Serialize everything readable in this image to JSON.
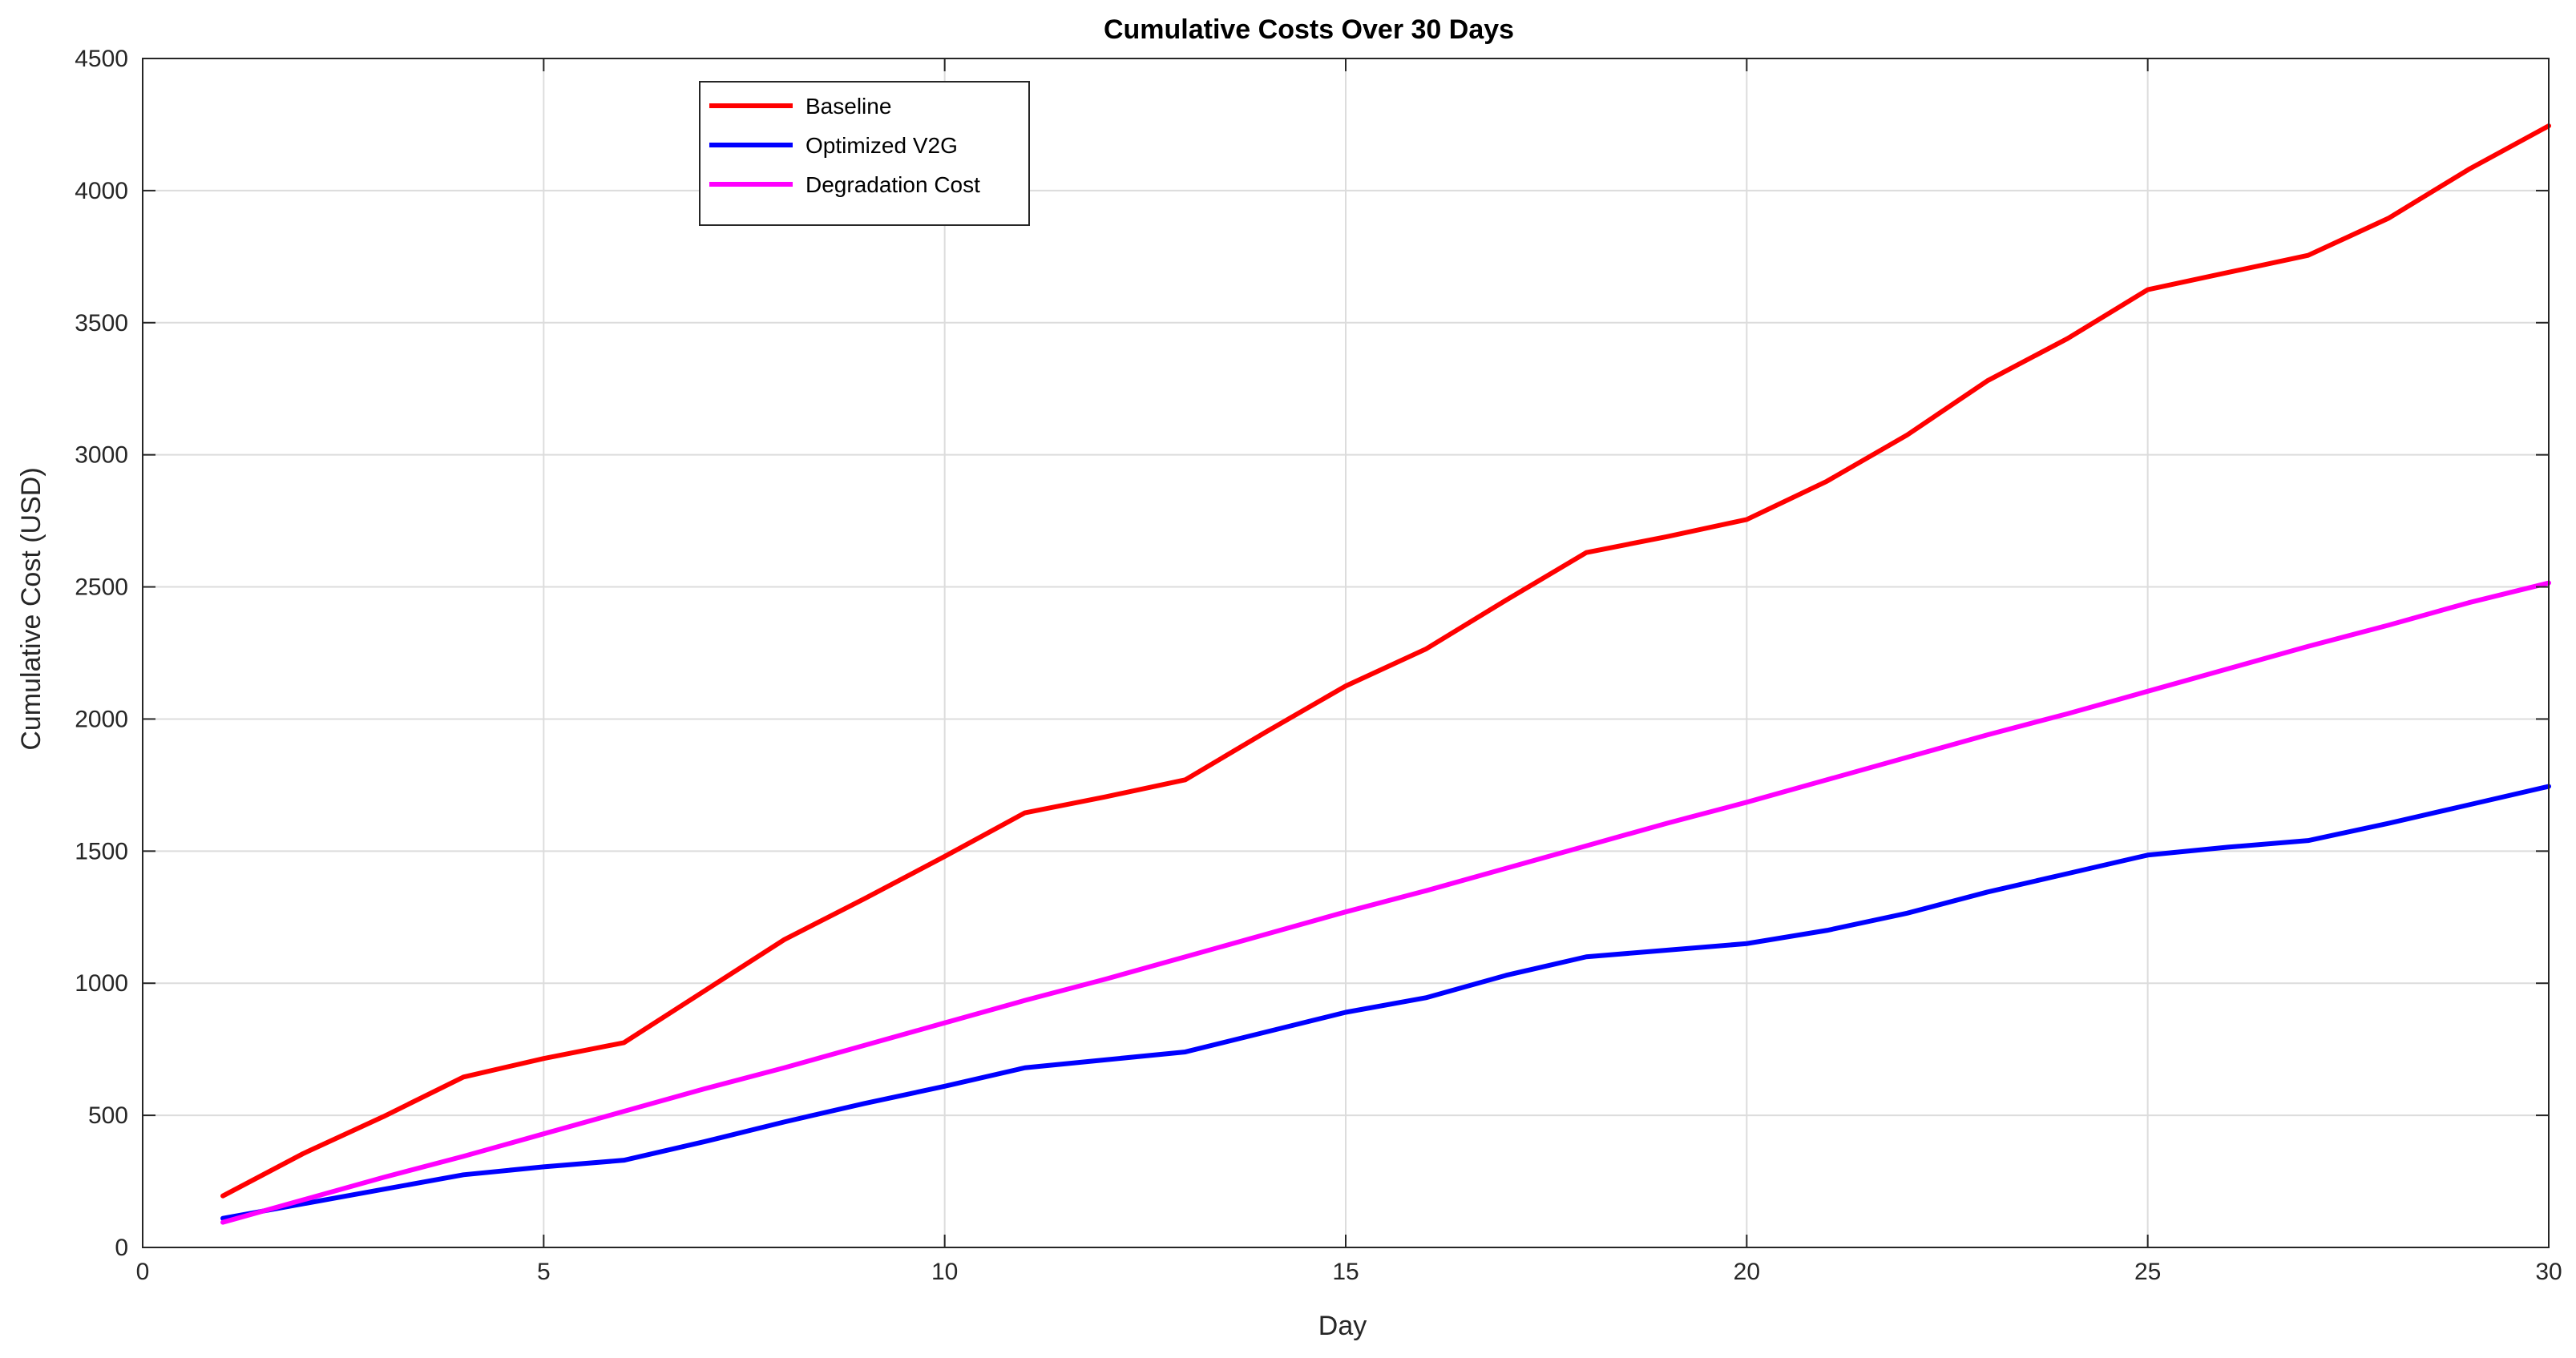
{
  "chart_data": {
    "type": "line",
    "title": "Cumulative Costs Over 30 Days",
    "xlabel": "Day",
    "ylabel": "Cumulative Cost (USD)",
    "xlim": [
      0,
      30
    ],
    "ylim": [
      0,
      4500
    ],
    "xticks": [
      0,
      5,
      10,
      15,
      20,
      25,
      30
    ],
    "yticks": [
      0,
      500,
      1000,
      1500,
      2000,
      2500,
      3000,
      3500,
      4000,
      4500
    ],
    "grid": true,
    "legend_position": "top-left",
    "x": [
      1,
      2,
      3,
      4,
      5,
      6,
      7,
      8,
      9,
      10,
      11,
      12,
      13,
      14,
      15,
      16,
      17,
      18,
      19,
      20,
      21,
      22,
      23,
      24,
      25,
      26,
      27,
      28,
      29,
      30
    ],
    "series": [
      {
        "name": "Baseline",
        "color": "#ff0000",
        "values": [
          195,
          355,
          495,
          645,
          715,
          775,
          970,
          1165,
          1320,
          1480,
          1645,
          1705,
          1770,
          1950,
          2125,
          2265,
          2450,
          2630,
          2690,
          2755,
          2900,
          3075,
          3280,
          3440,
          3625,
          3690,
          3755,
          3895,
          4080,
          4245
        ]
      },
      {
        "name": "Optimized V2G",
        "color": "#0000ff",
        "values": [
          110,
          165,
          220,
          275,
          305,
          330,
          400,
          475,
          545,
          610,
          680,
          710,
          740,
          815,
          890,
          945,
          1030,
          1100,
          1125,
          1150,
          1200,
          1265,
          1345,
          1415,
          1485,
          1515,
          1540,
          1605,
          1675,
          1745
        ]
      },
      {
        "name": "Degradation Cost",
        "color": "#ff00ff",
        "values": [
          95,
          180,
          265,
          345,
          430,
          515,
          600,
          680,
          765,
          850,
          935,
          1015,
          1100,
          1185,
          1270,
          1350,
          1435,
          1520,
          1605,
          1685,
          1770,
          1855,
          1940,
          2020,
          2105,
          2190,
          2275,
          2355,
          2440,
          2515
        ]
      }
    ]
  }
}
